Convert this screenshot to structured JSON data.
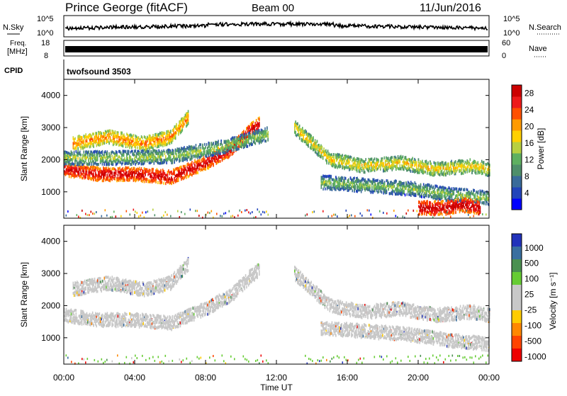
{
  "header": {
    "station": "Prince George (fitACF)",
    "beam": "Beam 00",
    "date": "11/Jun/2016"
  },
  "side_labels": {
    "nsky": "N.Sky",
    "nsky_ticks": [
      "10^5",
      "10^0"
    ],
    "freq_line1": "Freq.",
    "freq_line2": "[MHz]",
    "freq_ticks": [
      "18",
      "8"
    ],
    "cpid": "CPID",
    "cpid_value": "twofsound 3503",
    "nsearch": "N.Search",
    "nsearch_ticks": [
      "10^5",
      "10^0"
    ],
    "nave": "Nave",
    "nave_ticks": [
      "60",
      "0"
    ]
  },
  "colors": {
    "power": [
      "#0000ff",
      "#2244bb",
      "#3a6b9a",
      "#4f8f6a",
      "#5fb060",
      "#b8d040",
      "#ffd000",
      "#ff9a00",
      "#ff5000",
      "#ee1a1a",
      "#cc0000"
    ],
    "velocity": [
      "#2233bb",
      "#3a6fa0",
      "#4a9050",
      "#66cc33",
      "#c8c8c8",
      "#c8c8c8",
      "#ffcc00",
      "#ff8800",
      "#ff4400",
      "#ee0000"
    ]
  },
  "chart_data": [
    {
      "type": "heatmap",
      "name": "power",
      "xlabel": "",
      "ylabel": "Slant Range [km]",
      "xlim": [
        0,
        24
      ],
      "ylim": [
        180,
        4500
      ],
      "yticks": [
        1000,
        2000,
        3000,
        4000
      ],
      "colorbar": {
        "label": "Power [dB]",
        "ticks": [
          "4",
          "8",
          "12",
          "16",
          "20",
          "24",
          "28"
        ],
        "range": [
          0,
          30
        ]
      },
      "bands": [
        {
          "t": [
            0.0,
            2.0,
            4.0,
            6.0,
            8.0,
            9.5,
            10.5,
            11.0
          ],
          "y": [
            1700,
            1550,
            1550,
            1450,
            1900,
            2350,
            2900,
            3100
          ],
          "value": 26
        },
        {
          "t": [
            0.5,
            2.5,
            4.5,
            6.0,
            7.0
          ],
          "y": [
            2500,
            2700,
            2500,
            2700,
            3300
          ],
          "value": 18
        },
        {
          "t": [
            0.0,
            3.0,
            6.0,
            9.0,
            11.5
          ],
          "y": [
            2050,
            2050,
            2100,
            2400,
            2800
          ],
          "value": 10
        },
        {
          "t": [
            13.0,
            15.0,
            17.0,
            19.0,
            21.0,
            23.0,
            24.0
          ],
          "y": [
            3000,
            2000,
            1800,
            1900,
            1700,
            1800,
            1700
          ],
          "value": 14
        },
        {
          "t": [
            14.5,
            17.0,
            19.5,
            22.0,
            24.0
          ],
          "y": [
            1300,
            1200,
            1100,
            900,
            800
          ],
          "value": 9
        },
        {
          "t": [
            20.0,
            21.5,
            22.5,
            23.5
          ],
          "y": [
            500,
            500,
            600,
            500
          ],
          "value": 27
        }
      ]
    },
    {
      "type": "heatmap",
      "name": "velocity",
      "xlabel": "Time UT",
      "ylabel": "Slant Range [km]",
      "xlim": [
        0,
        24
      ],
      "ylim": [
        180,
        4500
      ],
      "yticks": [
        1000,
        2000,
        3000,
        4000
      ],
      "xticks": [
        "00:00",
        "04:00",
        "08:00",
        "12:00",
        "16:00",
        "20:00",
        "00:00"
      ],
      "colorbar": {
        "label": "Velocity [m s⁻¹]",
        "ticks": [
          "1000",
          "500",
          "100",
          "25",
          "-25",
          "-100",
          "-500",
          "-1000"
        ]
      },
      "bands": [
        {
          "t": [
            0.0,
            2.0,
            4.0,
            6.0,
            8.0,
            9.5,
            10.5,
            11.0
          ],
          "y": [
            1700,
            1550,
            1550,
            1450,
            1900,
            2350,
            2900,
            3100
          ],
          "value": 0
        },
        {
          "t": [
            0.5,
            2.5,
            4.5,
            6.0,
            7.0
          ],
          "y": [
            2500,
            2700,
            2500,
            2700,
            3300
          ],
          "value": 0
        },
        {
          "t": [
            13.0,
            15.0,
            17.0,
            19.0,
            21.0,
            23.0,
            24.0
          ],
          "y": [
            3000,
            2000,
            1800,
            1900,
            1700,
            1800,
            1700
          ],
          "value": 0
        },
        {
          "t": [
            14.5,
            17.0,
            19.5,
            22.0,
            24.0
          ],
          "y": [
            1300,
            1200,
            1100,
            900,
            800
          ],
          "value": 0
        }
      ]
    }
  ]
}
